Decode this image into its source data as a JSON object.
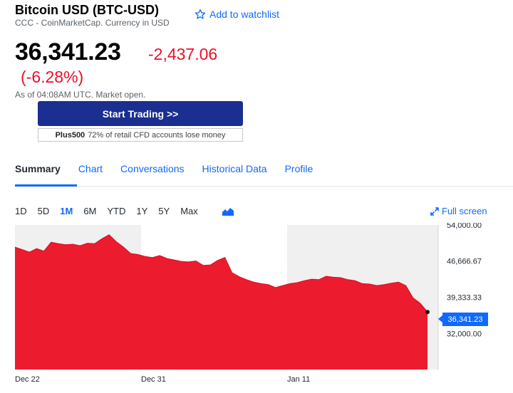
{
  "header": {
    "title": "Bitcoin USD (BTC-USD)",
    "subtitle": "CCC - CoinMarketCap. Currency in USD",
    "watchlist_label": "Add to watchlist"
  },
  "quote": {
    "price": "36,341.23",
    "change": "-2,437.06",
    "change_pct": "(-6.28%)",
    "as_of": "As of 04:08AM UTC. Market open."
  },
  "promo": {
    "button_label": "Start Trading >>",
    "broker": "Plus500",
    "disclaimer": "72% of retail CFD accounts lose money"
  },
  "tabs": [
    "Summary",
    "Chart",
    "Conversations",
    "Historical Data",
    "Profile"
  ],
  "ranges": [
    "1D",
    "5D",
    "1M",
    "6M",
    "YTD",
    "1Y",
    "5Y",
    "Max"
  ],
  "active_range": "1M",
  "fullscreen_label": "Full screen",
  "chart": {
    "y_ticks": [
      "54,000.00",
      "46,666.67",
      "39,333.33",
      "32,000.00"
    ],
    "x_ticks": [
      "Dec 22",
      "Dec 31",
      "Jan 11"
    ],
    "current_label": "36,341.23"
  },
  "chart_data": {
    "type": "area",
    "ylim": [
      24666.67,
      54000
    ],
    "y_ticks": [
      54000,
      46666.67,
      39333.33,
      32000
    ],
    "x_ticks": [
      "Dec 22",
      "Dec 31",
      "Jan 11"
    ],
    "values": [
      49500,
      49000,
      48500,
      49200,
      48700,
      50500,
      50200,
      50000,
      50100,
      49800,
      50300,
      50200,
      51200,
      52000,
      50600,
      49500,
      48200,
      48000,
      47600,
      47400,
      47800,
      47200,
      46900,
      46600,
      46500,
      46700,
      45800,
      45900,
      46800,
      47400,
      44300,
      43500,
      42900,
      42400,
      42100,
      41900,
      41300,
      41700,
      42100,
      42300,
      42700,
      43000,
      42900,
      43600,
      43400,
      43300,
      42900,
      42700,
      42100,
      42000,
      41700,
      41900,
      42200,
      42400,
      41700,
      39200,
      38100,
      36341.23
    ],
    "last": 36341.23,
    "colors": {
      "fill": "#ec1c2e",
      "accent": "#0f69ff",
      "negative": "#eb0f29"
    }
  }
}
